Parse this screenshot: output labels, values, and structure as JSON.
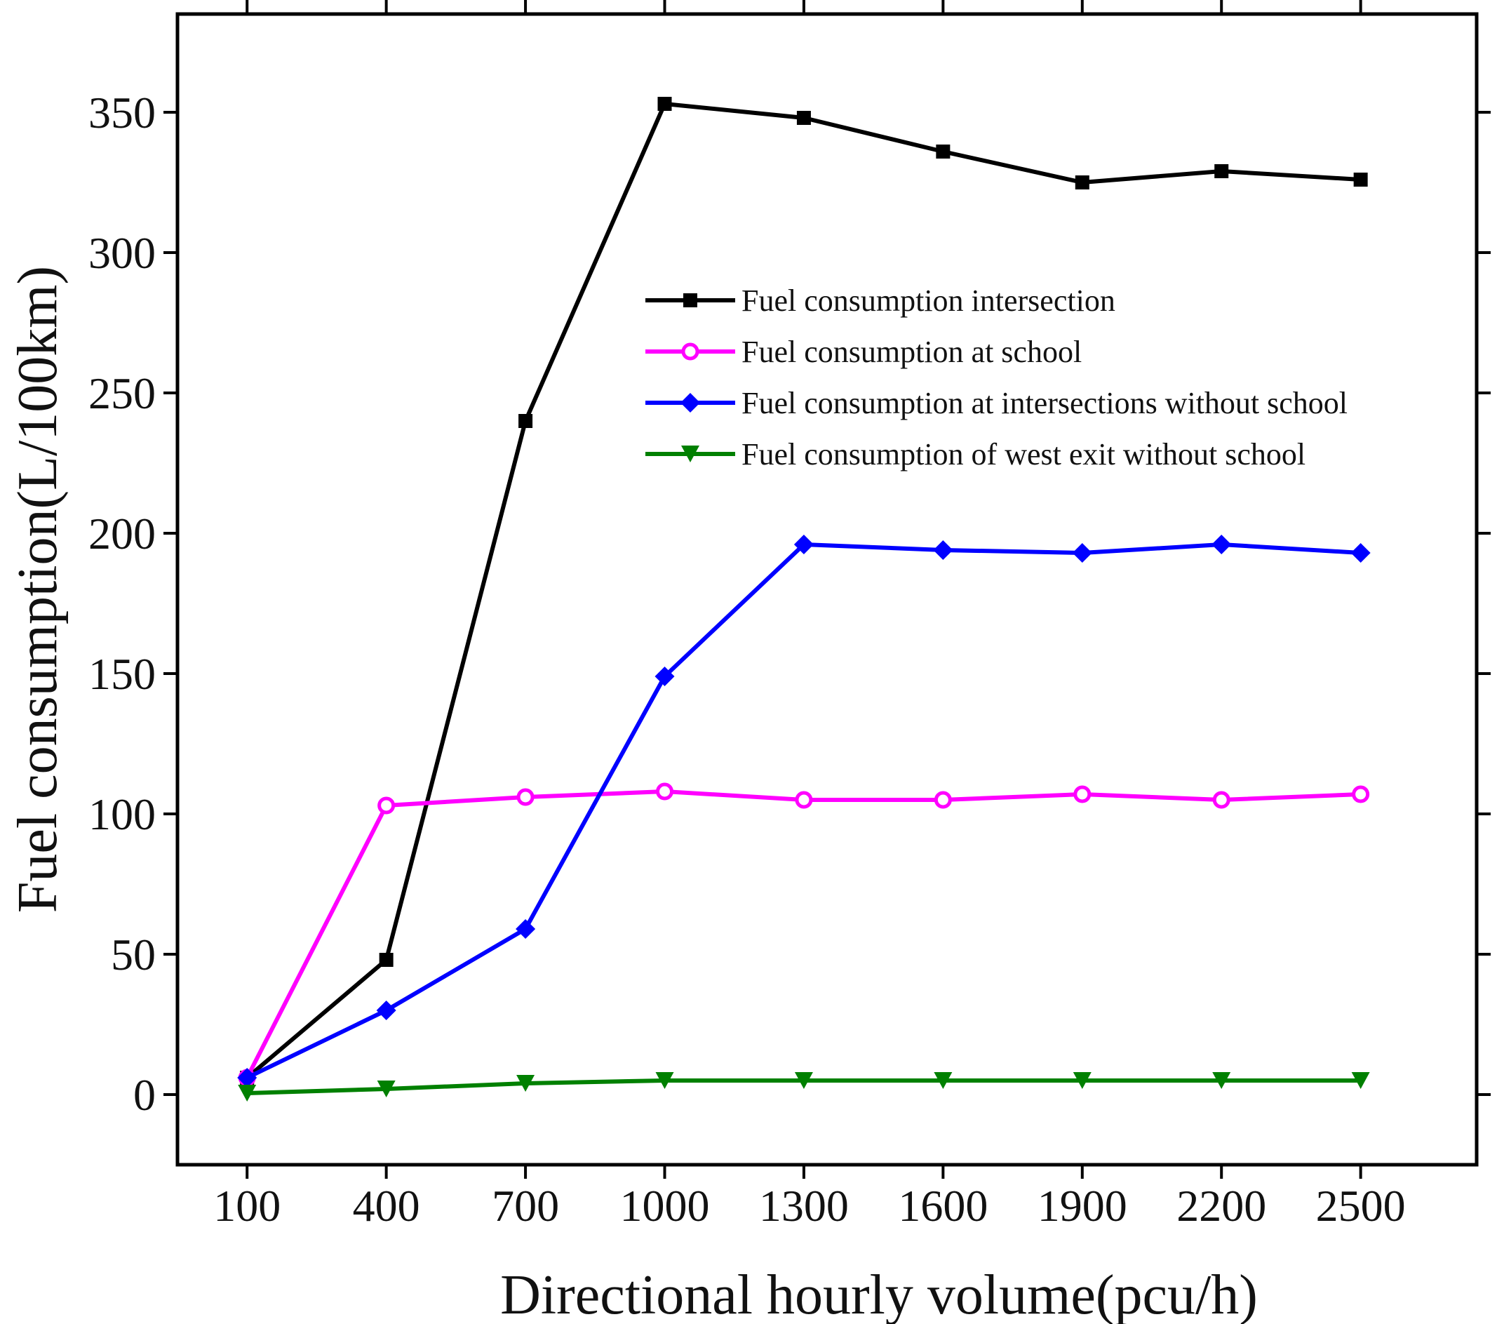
{
  "chart_data": {
    "type": "line",
    "title": "",
    "xlabel": "Directional hourly volume(pcu/h)",
    "ylabel": "Fuel consumption(L/100km)",
    "x": [
      100,
      400,
      700,
      1000,
      1300,
      1600,
      1900,
      2200,
      2500
    ],
    "xticks": [
      "100",
      "400",
      "700",
      "1000",
      "1300",
      "1600",
      "1900",
      "2200",
      "2500"
    ],
    "yticks": [
      "0",
      "50",
      "100",
      "150",
      "200",
      "250",
      "300",
      "350"
    ],
    "xlim": [
      -50,
      2750
    ],
    "ylim": [
      -25,
      385
    ],
    "grid": false,
    "legend_position": "upper-center",
    "series": [
      {
        "name": "Fuel consumption intersection",
        "color": "#000000",
        "marker": "square",
        "values": [
          6,
          48,
          240,
          353,
          348,
          336,
          325,
          329,
          326
        ]
      },
      {
        "name": "Fuel consumption at school",
        "color": "#ff00ff",
        "marker": "circle",
        "values": [
          6,
          103,
          106,
          108,
          105,
          105,
          107,
          105,
          107
        ]
      },
      {
        "name": "Fuel consumption at intersections without school",
        "color": "#0000ff",
        "marker": "diamond",
        "values": [
          6,
          30,
          59,
          149,
          196,
          194,
          193,
          196,
          193
        ]
      },
      {
        "name": "Fuel consumption of west exit without school",
        "color": "#008000",
        "marker": "triangle-down",
        "values": [
          0.5,
          2,
          4,
          5,
          5,
          5,
          5,
          5,
          5
        ]
      }
    ]
  }
}
